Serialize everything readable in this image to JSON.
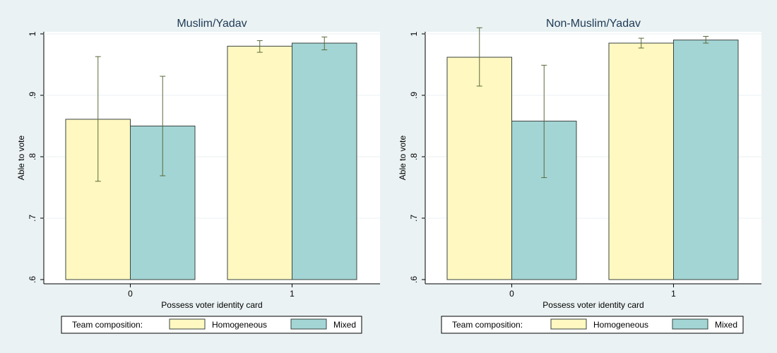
{
  "colors": {
    "background": "#eaf2f3",
    "plot_area": "#ffffff",
    "homogeneous": "#fff8c0",
    "mixed": "#a3d5d5",
    "bar_outline": "#3a4540",
    "error_bar": "#5a6a3a",
    "title": "#1e3a56"
  },
  "chart_data": [
    {
      "type": "bar",
      "title": "Muslim/Yadav",
      "xlabel": "Possess voter identity card",
      "ylabel": "Able to vote",
      "ylim": [
        0.6,
        1.0
      ],
      "yticks": [
        ".6",
        ".7",
        ".8",
        ".9",
        "1"
      ],
      "categories": [
        "0",
        "1"
      ],
      "series": [
        {
          "name": "Homogeneous",
          "values": [
            0.861,
            0.98
          ],
          "ci_low": [
            0.76,
            0.97
          ],
          "ci_high": [
            0.963,
            0.989
          ]
        },
        {
          "name": "Mixed",
          "values": [
            0.85,
            0.985
          ],
          "ci_low": [
            0.769,
            0.974
          ],
          "ci_high": [
            0.931,
            0.995
          ]
        }
      ],
      "legend": {
        "title": "Team composition:",
        "placement": "bottom"
      },
      "grid": true
    },
    {
      "type": "bar",
      "title": "Non-Muslim/Yadav",
      "xlabel": "Possess voter identity card",
      "ylabel": "Able to vote",
      "ylim": [
        0.6,
        1.0
      ],
      "yticks": [
        ".6",
        ".7",
        ".8",
        ".9",
        "1"
      ],
      "categories": [
        "0",
        "1"
      ],
      "series": [
        {
          "name": "Homogeneous",
          "values": [
            0.962,
            0.985
          ],
          "ci_low": [
            0.915,
            0.977
          ],
          "ci_high": [
            1.01,
            0.993
          ]
        },
        {
          "name": "Mixed",
          "values": [
            0.858,
            0.99
          ],
          "ci_low": [
            0.766,
            0.985
          ],
          "ci_high": [
            0.949,
            0.996
          ]
        }
      ],
      "legend": {
        "title": "Team composition:",
        "placement": "bottom"
      },
      "grid": true
    }
  ]
}
